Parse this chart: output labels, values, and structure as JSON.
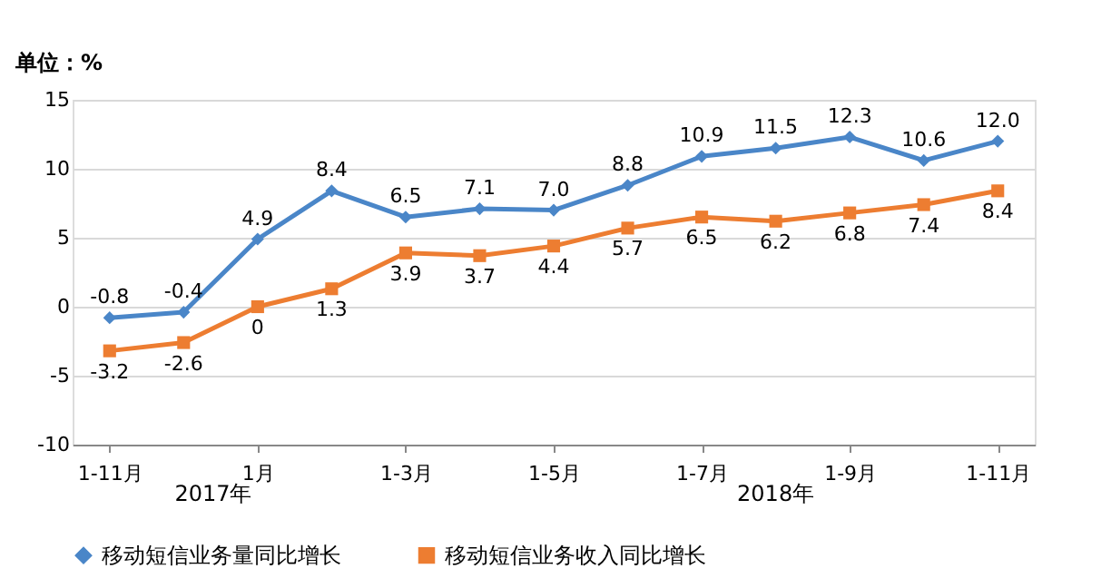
{
  "chart_data": {
    "type": "line",
    "ylabel": "单位：%",
    "categories": [
      "1-11月",
      null,
      "1月",
      null,
      "1-3月",
      null,
      "1-5月",
      null,
      "1-7月",
      null,
      "1-9月",
      null,
      "1-11月"
    ],
    "series": [
      {
        "name": "移动短信业务量同比增长",
        "color": "#4a86c8",
        "marker": "diamond",
        "values": [
          -0.8,
          -0.4,
          4.9,
          8.4,
          6.5,
          7.1,
          7.0,
          8.8,
          10.9,
          11.5,
          12.3,
          10.6,
          12.0
        ],
        "value_labels": [
          "-0.8",
          "-0.4",
          "4.9",
          "8.4",
          "6.5",
          "7.1",
          "7.0",
          "8.8",
          "10.9",
          "11.5",
          "12.3",
          "10.6",
          "12.0"
        ]
      },
      {
        "name": "移动短信业务收入同比增长",
        "color": "#ed7d31",
        "marker": "square",
        "values": [
          -3.2,
          -2.6,
          0,
          1.3,
          3.9,
          3.7,
          4.4,
          5.7,
          6.5,
          6.2,
          6.8,
          7.4,
          8.4
        ],
        "value_labels": [
          "-3.2",
          "-2.6",
          "0",
          "1.3",
          "3.9",
          "3.7",
          "4.4",
          "5.7",
          "6.5",
          "6.2",
          "6.8",
          "7.4",
          "8.4"
        ]
      }
    ],
    "annotations": [
      "2017年",
      "2018年"
    ],
    "ylim": [
      -10,
      15
    ],
    "yticks": [
      -10,
      -5,
      0,
      5,
      10,
      15
    ],
    "grid": "y",
    "legend": "bottom"
  }
}
